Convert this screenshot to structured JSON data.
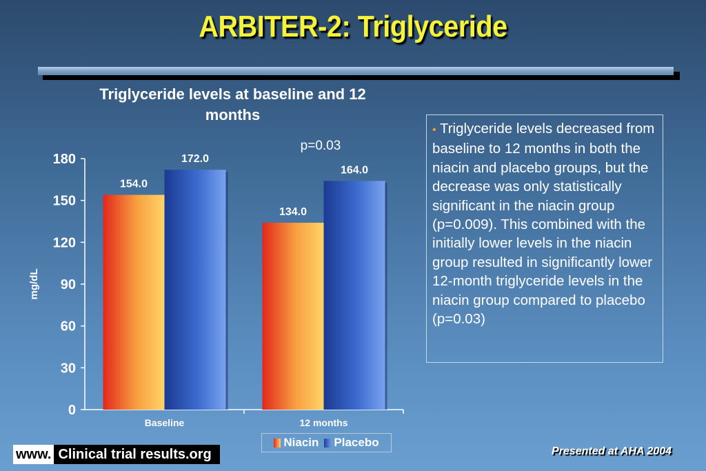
{
  "slide": {
    "title": "ARBITER-2: Triglyceride",
    "footer_prefix": "www.",
    "footer_site": "Clinical trial results.org",
    "footer_note": "Presented at AHA 2004"
  },
  "annotation": {
    "p_value": "p=0.03"
  },
  "text_box": {
    "bullet": "•",
    "text": "Triglyceride levels decreased from baseline to 12 months in both the niacin and placebo groups, but the decrease was only statistically significant in the niacin group (p=0.009). This combined with the initially lower levels in the niacin group resulted in significantly lower 12-month triglyceride levels in the niacin group compared to placebo (p=0.03)"
  },
  "colors": {
    "title": "#f5f23a",
    "niacin": "#f08a2a",
    "placebo": "#3a66c8",
    "bullet": "#f0a030"
  },
  "chart_data": {
    "type": "bar",
    "title": "Triglyceride levels at baseline and 12 months",
    "categories": [
      "Baseline",
      "12 months"
    ],
    "series": [
      {
        "name": "Niacin",
        "values": [
          154.0,
          134.0
        ],
        "labels": [
          "154.0",
          "134.0"
        ]
      },
      {
        "name": "Placebo",
        "values": [
          172.0,
          164.0
        ],
        "labels": [
          "172.0",
          "164.0"
        ]
      }
    ],
    "xlabel": "",
    "ylabel": "mg/dL",
    "ylim": [
      0,
      180
    ],
    "yticks": [
      0,
      30,
      60,
      90,
      120,
      150,
      180
    ],
    "grid": false,
    "legend": "bottom"
  }
}
